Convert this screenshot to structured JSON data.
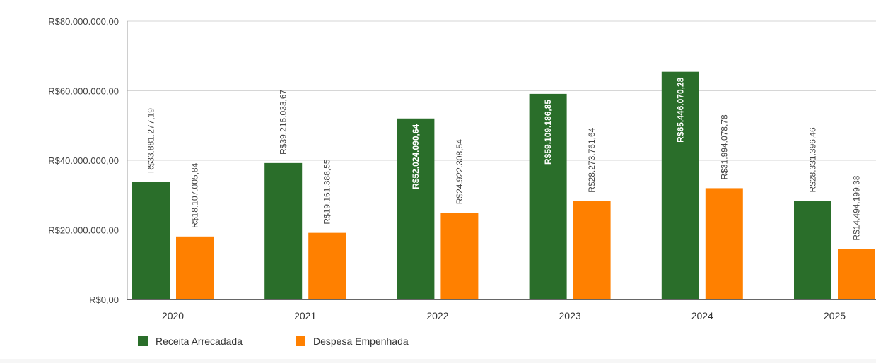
{
  "chart_data": {
    "type": "bar",
    "categories": [
      "2020",
      "2021",
      "2022",
      "2023",
      "2024",
      "2025"
    ],
    "series": [
      {
        "name": "Receita Arrecadada",
        "color": "#2a6e2a",
        "values": [
          33881277.19,
          39215033.67,
          52024090.64,
          59109186.85,
          65446070.28,
          28331396.46
        ],
        "labels": [
          "R$33.881.277,19",
          "R$39.215.033,67",
          "R$52.024.090,64",
          "R$59.109.186,85",
          "R$65.446.070,28",
          "R$28.331.396,46"
        ]
      },
      {
        "name": "Despesa Empenhada",
        "color": "#ff8000",
        "values": [
          18107005.84,
          19161388.55,
          24922308.54,
          28273761.64,
          31994078.78,
          14494199.38
        ],
        "labels": [
          "R$18.107.005,84",
          "R$19.161.388,55",
          "R$24.922.308,54",
          "R$28.273.761,64",
          "R$31.994.078,78",
          "R$14.494.199,38"
        ]
      }
    ],
    "y_ticks": [
      {
        "value": 0,
        "label": "R$0,00"
      },
      {
        "value": 20000000,
        "label": "R$20.000.000,00"
      },
      {
        "value": 40000000,
        "label": "R$40.000.000,00"
      },
      {
        "value": 60000000,
        "label": "R$60.000.000,00"
      },
      {
        "value": 80000000,
        "label": "R$80.000.000,00"
      }
    ],
    "ylim": [
      0,
      80000000
    ],
    "grid": true,
    "legend_position": "bottom-left"
  }
}
